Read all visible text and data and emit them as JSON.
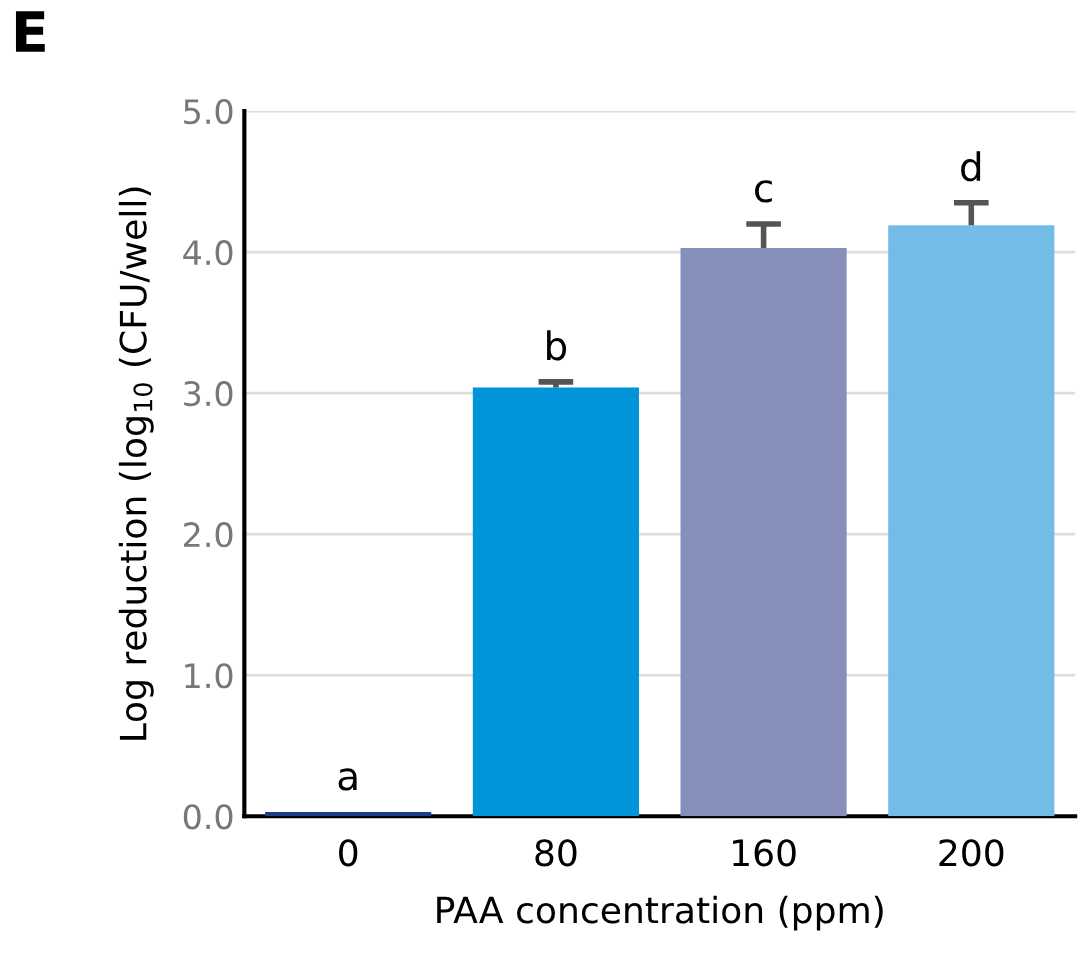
{
  "chart_data": {
    "type": "bar",
    "xlabel": "PAA concentration (ppm)",
    "ylabel": "Log reduction (log$_{10}$ (CFU/well)",
    "categories": [
      "0",
      "80",
      "160",
      "200"
    ],
    "values": [
      0.03,
      3.04,
      4.03,
      4.19
    ],
    "colors": [
      "#1b3f8b",
      "#0094d9",
      "#858fb9",
      "#74bce8"
    ],
    "errors": [
      null,
      [
        3.04,
        3.08
      ],
      [
        4.03,
        4.2
      ],
      [
        4.19,
        4.35
      ]
    ],
    "ylim": [
      0,
      5
    ],
    "yticks": [
      {
        "value": 0,
        "label": "0.0"
      },
      {
        "value": 1,
        "label": "1.0"
      },
      {
        "value": 2,
        "label": "2.0"
      },
      {
        "value": 3,
        "label": "3.0"
      },
      {
        "value": 4,
        "label": "4.0"
      },
      {
        "value": 5,
        "label": "5.0"
      }
    ],
    "grid": "y",
    "annotations": [
      "E",
      "a",
      "b",
      "c",
      "d"
    ]
  }
}
